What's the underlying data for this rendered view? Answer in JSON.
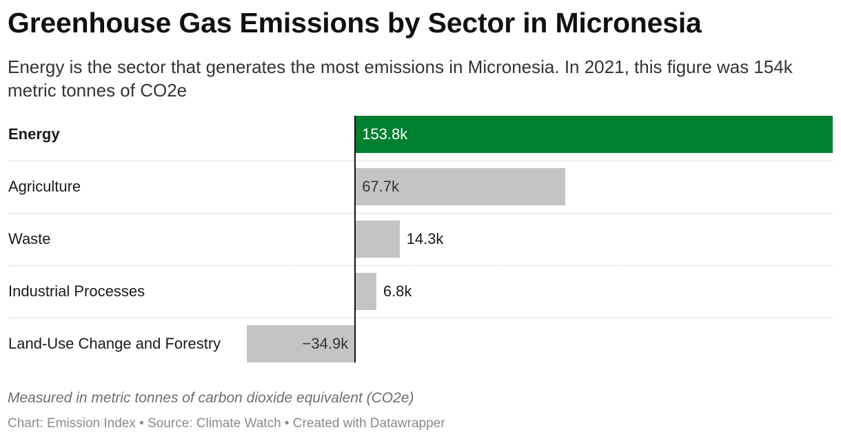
{
  "header": {
    "title": "Greenhouse Gas Emissions by Sector in Micronesia",
    "subtitle": "Energy is the sector that generates the most emissions in Micronesia. In 2021, this figure was 154k metric tonnes of CO2e"
  },
  "chart_data": {
    "type": "bar",
    "orientation": "horizontal",
    "categories": [
      "Energy",
      "Agriculture",
      "Waste",
      "Industrial Processes",
      "Land-Use Change and Forestry"
    ],
    "values": [
      153.8,
      67.7,
      14.3,
      6.8,
      -34.9
    ],
    "value_labels": [
      "153.8k",
      "67.7k",
      "14.3k",
      "6.8k",
      "−34.9k"
    ],
    "highlight_category": "Energy",
    "xlim": [
      -34.9,
      153.8
    ],
    "grid": false,
    "colors": {
      "highlight": "#00802f",
      "default": "#c4c4c4",
      "axis": "#111111"
    }
  },
  "footer": {
    "notes": "Measured in metric tonnes of carbon dioxide equivalent (CO2e)",
    "source": "Chart: Emission Index • Source: Climate Watch • Created with Datawrapper"
  }
}
